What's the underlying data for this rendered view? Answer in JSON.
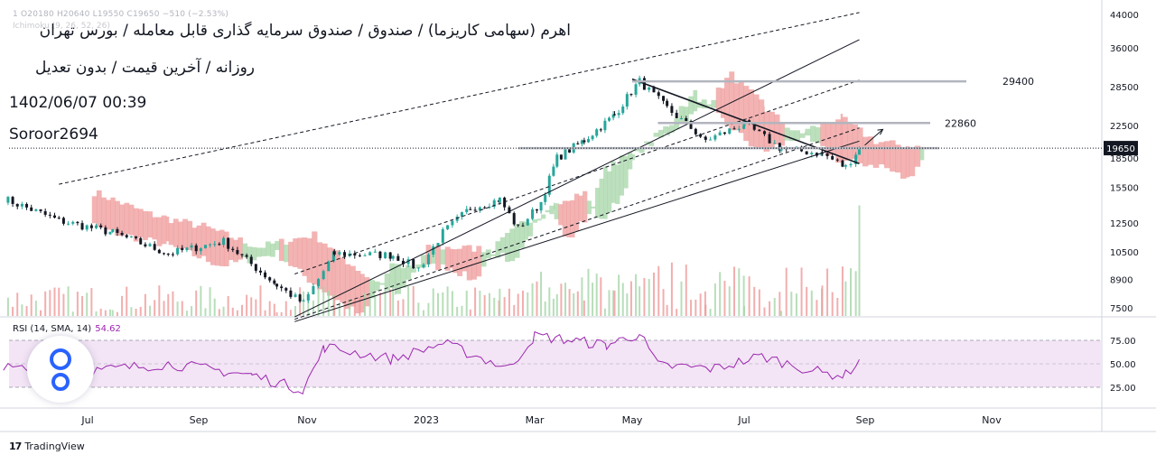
{
  "header": {
    "title": "اهرم (سهامی کاریزما) / صندوق / صندوق سرمایه گذاری قابل معامله / بورس تهران",
    "subtitle": "روزانه / آخرین قیمت / بدون تعدیل",
    "timestamp": "1402/06/07 00:39",
    "author": "Soroor2694",
    "ohlc": "1  O20180 H20640 L19550 C19650 −510 (−2.53%)",
    "ichimoku_label": "Ichimoku (9, 26, 52, 26)"
  },
  "rsi_panel": {
    "label": "RSI (14, SMA, 14)",
    "value": "54.62"
  },
  "branding": {
    "logo": "17",
    "name": "TradingView"
  },
  "colors": {
    "candle_up": "#26a69a",
    "candle_down": "#131722",
    "cloud_bull": "#a5d6a7",
    "cloud_bear": "#ef9a9a",
    "rsi_line": "#9c27b0",
    "rsi_band": "#f3e5f5",
    "vol_up": "#a5d6a7",
    "vol_down": "#ef9a9a"
  },
  "chart_data": {
    "type": "candlestick",
    "price_scale": "log",
    "y_ticks": [
      44000,
      36000,
      28500,
      22500,
      18500,
      15500,
      12500,
      10500,
      8900,
      7500
    ],
    "x_ticks": [
      "Jul",
      "Sep",
      "Nov",
      "2023",
      "Mar",
      "May",
      "Jul",
      "Sep",
      "Nov"
    ],
    "last_price": 19650,
    "price_levels": [
      29400,
      22860
    ],
    "close_path": [
      {
        "x": "2022-05-15",
        "y": 14500
      },
      {
        "x": "2022-06-15",
        "y": 12700
      },
      {
        "x": "2022-07-15",
        "y": 11800
      },
      {
        "x": "2022-08-15",
        "y": 10400
      },
      {
        "x": "2022-09-15",
        "y": 11200
      },
      {
        "x": "2022-10-15",
        "y": 8600
      },
      {
        "x": "2022-10-30",
        "y": 7700
      },
      {
        "x": "2022-11-15",
        "y": 10400
      },
      {
        "x": "2022-12-15",
        "y": 10300
      },
      {
        "x": "2022-12-28",
        "y": 9500
      },
      {
        "x": "2023-01-10",
        "y": 11800
      },
      {
        "x": "2023-01-25",
        "y": 13700
      },
      {
        "x": "2023-02-10",
        "y": 14400
      },
      {
        "x": "2023-02-20",
        "y": 12100
      },
      {
        "x": "2023-03-05",
        "y": 14200
      },
      {
        "x": "2023-03-15",
        "y": 18500
      },
      {
        "x": "2023-04-01",
        "y": 20600
      },
      {
        "x": "2023-04-20",
        "y": 24000
      },
      {
        "x": "2023-05-05",
        "y": 29400
      },
      {
        "x": "2023-05-20",
        "y": 25000
      },
      {
        "x": "2023-06-10",
        "y": 20600
      },
      {
        "x": "2023-07-01",
        "y": 22700
      },
      {
        "x": "2023-07-20",
        "y": 19600
      },
      {
        "x": "2023-08-10",
        "y": 19000
      },
      {
        "x": "2023-08-22",
        "y": 17500
      },
      {
        "x": "2023-08-29",
        "y": 19650
      }
    ],
    "rsi": {
      "levels": [
        75,
        50,
        25
      ],
      "value": 54.62,
      "path": [
        {
          "x": "2022-05-15",
          "y": 45
        },
        {
          "x": "2022-07-01",
          "y": 42
        },
        {
          "x": "2022-08-15",
          "y": 50
        },
        {
          "x": "2022-10-01",
          "y": 38
        },
        {
          "x": "2022-10-30",
          "y": 22
        },
        {
          "x": "2022-11-10",
          "y": 68
        },
        {
          "x": "2022-12-15",
          "y": 55
        },
        {
          "x": "2023-01-10",
          "y": 72
        },
        {
          "x": "2023-02-15",
          "y": 45
        },
        {
          "x": "2023-03-01",
          "y": 80
        },
        {
          "x": "2023-04-15",
          "y": 70
        },
        {
          "x": "2023-05-05",
          "y": 82
        },
        {
          "x": "2023-05-15",
          "y": 48
        },
        {
          "x": "2023-06-15",
          "y": 45
        },
        {
          "x": "2023-07-10",
          "y": 58
        },
        {
          "x": "2023-08-10",
          "y": 40
        },
        {
          "x": "2023-08-22",
          "y": 38
        },
        {
          "x": "2023-08-29",
          "y": 54.62
        }
      ]
    }
  }
}
